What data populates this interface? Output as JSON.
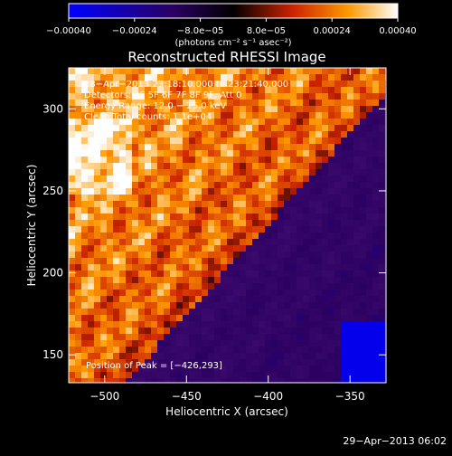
{
  "colorbar": {
    "ticks": [
      "−0.00040",
      "−0.00024",
      "−8.0e−05",
      "8.0e−05",
      "0.00024",
      "0.00040"
    ],
    "tick_values": [
      -0.0004,
      -0.00024,
      -8e-05,
      8e-05,
      0.00024,
      0.0004
    ],
    "range": [
      -0.0004,
      0.0004
    ],
    "units": "(photons cm⁻² s⁻¹ asec⁻²)",
    "colors": {
      "low": "#0000ff",
      "mid_dark": "#2a0060",
      "zero": "#000000",
      "mid": "#cc2200",
      "warm": "#ff9900",
      "high": "#ffffff"
    }
  },
  "chart_data": {
    "type": "heatmap",
    "title": "Reconstructed RHESSI Image",
    "xlabel": "Heliocentric X (arcsec)",
    "ylabel": "Heliocentric Y (arcsec)",
    "xlim": [
      -522,
      -328
    ],
    "ylim": [
      133,
      325
    ],
    "xticks": [
      -500,
      -450,
      -400,
      -350
    ],
    "xtick_labels": [
      "−500",
      "−450",
      "−400",
      "−350"
    ],
    "yticks": [
      150,
      200,
      250,
      300
    ],
    "ytick_labels": [
      "150",
      "200",
      "250",
      "300"
    ],
    "info_lines": [
      "28−Apr−2013 23:18:10.000 to 23:21:40.000",
      "Detectors: 3F 5F 6F 7F 8F 9F, Att 0",
      "Energy Range: 12.0 − 25.0 keV",
      "Clean    Total counts: 1.1e+04"
    ],
    "peak_label": "Position of Peak = [−426,293]",
    "peak": [
      -426,
      293
    ]
  },
  "timestamp": "29−Apr−2013 06:02"
}
